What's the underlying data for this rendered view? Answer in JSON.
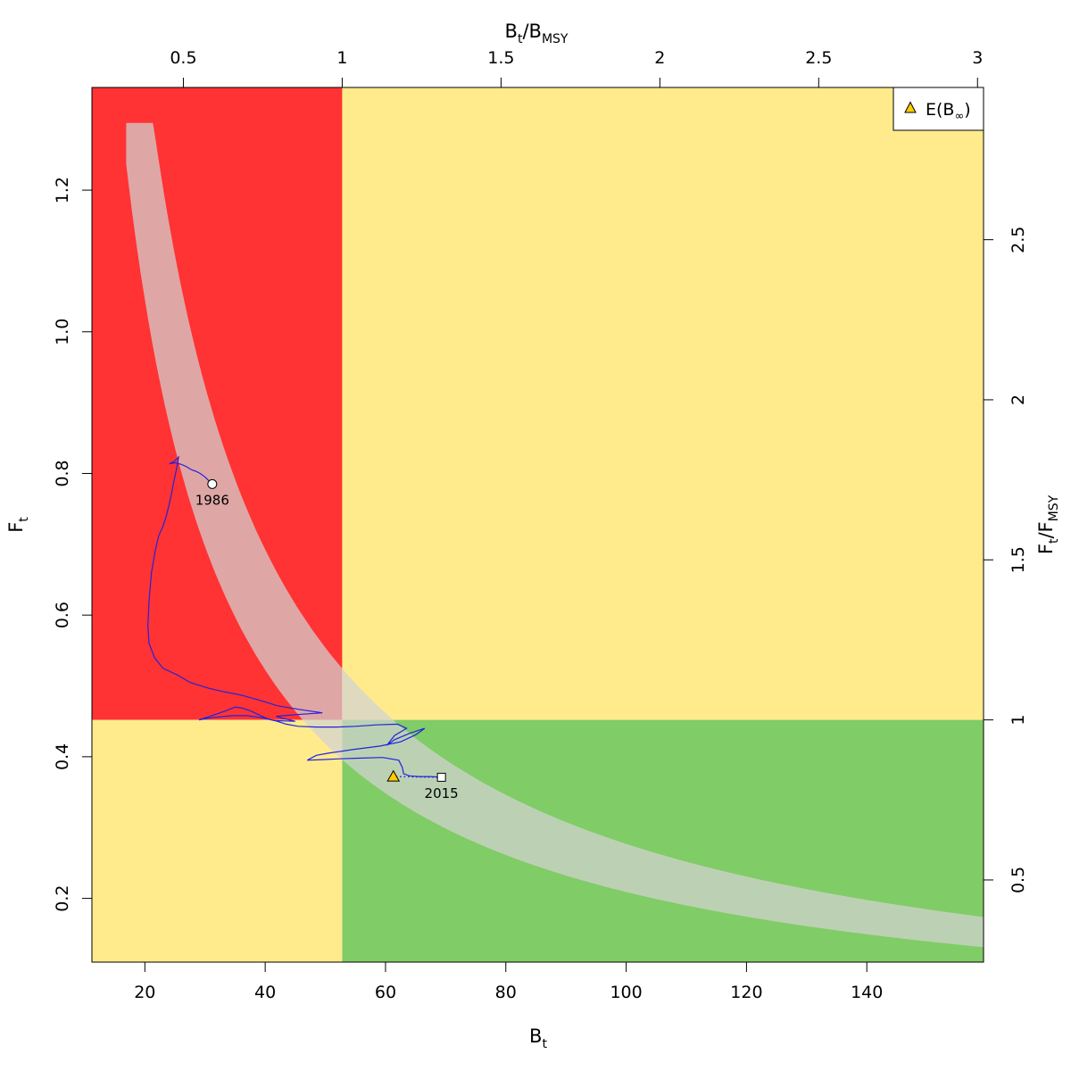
{
  "chart_data": {
    "type": "scatter",
    "title": "",
    "x_axis": {
      "label_main": "B",
      "label_sub": "t",
      "range": [
        11.2,
        159.4
      ],
      "ticks": [
        "20",
        "40",
        "60",
        "80",
        "100",
        "120",
        "140"
      ]
    },
    "y_axis": {
      "label_main": "F",
      "label_sub": "t",
      "range": [
        0.11,
        1.345
      ],
      "ticks": [
        "0.2",
        "0.4",
        "0.6",
        "0.8",
        "1.0",
        "1.2"
      ]
    },
    "top_axis": {
      "label_main_1": "B",
      "label_sub_1": "t",
      "label_sep": "/",
      "label_main_2": "B",
      "label_sub_2": "MSY",
      "ticks": [
        "0.5",
        "1",
        "1.5",
        "2",
        "2.5",
        "3"
      ]
    },
    "right_axis": {
      "label_main_1": "F",
      "label_sub_1": "t",
      "label_sep": "/",
      "label_main_2": "F",
      "label_sub_2": "MSY",
      "ticks": [
        "0.5",
        "1",
        "1.5",
        "2",
        "2.5"
      ]
    },
    "reference_points": {
      "Bmsy": 52.8,
      "Fmsy": 0.452
    },
    "zone_colors": {
      "red": "#ff3333",
      "yellow": "#ffeb8c",
      "green": "#80cc66",
      "band": "#d3d3d3"
    },
    "band": {
      "c_lower": 20.9,
      "c_upper": 27.7,
      "x_start": 16.9,
      "tip_y": 1.295,
      "x_end": 159.4
    },
    "trajectory": {
      "color": "#2222dd",
      "points": [
        [
          31.2,
          0.785
        ],
        [
          30.6,
          0.79
        ],
        [
          30.0,
          0.795
        ],
        [
          29.2,
          0.8
        ],
        [
          28.5,
          0.803
        ],
        [
          27.8,
          0.805
        ],
        [
          26.8,
          0.81
        ],
        [
          26.0,
          0.813
        ],
        [
          25.0,
          0.815
        ],
        [
          24.2,
          0.814
        ],
        [
          24.3,
          0.815
        ],
        [
          24.7,
          0.816
        ],
        [
          25.0,
          0.818
        ],
        [
          25.6,
          0.823
        ],
        [
          25.4,
          0.812
        ],
        [
          25.1,
          0.8
        ],
        [
          24.7,
          0.784
        ],
        [
          24.4,
          0.77
        ],
        [
          24.0,
          0.755
        ],
        [
          23.5,
          0.738
        ],
        [
          23.0,
          0.725
        ],
        [
          22.3,
          0.712
        ],
        [
          21.7,
          0.69
        ],
        [
          21.1,
          0.66
        ],
        [
          20.7,
          0.62
        ],
        [
          20.5,
          0.585
        ],
        [
          20.7,
          0.56
        ],
        [
          21.6,
          0.54
        ],
        [
          23.0,
          0.525
        ],
        [
          25.5,
          0.515
        ],
        [
          27.5,
          0.505
        ],
        [
          30.5,
          0.497
        ],
        [
          33.0,
          0.492
        ],
        [
          36.0,
          0.487
        ],
        [
          39.0,
          0.48
        ],
        [
          42.0,
          0.472
        ],
        [
          45.5,
          0.467
        ],
        [
          49.5,
          0.462
        ],
        [
          46.0,
          0.46
        ],
        [
          43.0,
          0.458
        ],
        [
          41.8,
          0.457
        ],
        [
          43.0,
          0.454
        ],
        [
          45.0,
          0.45
        ],
        [
          41.5,
          0.451
        ],
        [
          39.5,
          0.455
        ],
        [
          37.0,
          0.458
        ],
        [
          34.5,
          0.458
        ],
        [
          31.0,
          0.455
        ],
        [
          29.0,
          0.452
        ],
        [
          31.5,
          0.459
        ],
        [
          33.5,
          0.465
        ],
        [
          35.0,
          0.47
        ],
        [
          36.0,
          0.469
        ],
        [
          37.5,
          0.465
        ],
        [
          39.0,
          0.459
        ],
        [
          40.0,
          0.455
        ],
        [
          41.0,
          0.452
        ],
        [
          42.0,
          0.45
        ],
        [
          43.5,
          0.446
        ],
        [
          45.5,
          0.443
        ],
        [
          48.5,
          0.442
        ],
        [
          52.0,
          0.442
        ],
        [
          55.0,
          0.443
        ],
        [
          58.5,
          0.445
        ],
        [
          62.0,
          0.446
        ],
        [
          63.5,
          0.44
        ],
        [
          61.5,
          0.43
        ],
        [
          60.2,
          0.416
        ],
        [
          61.5,
          0.424
        ],
        [
          64.0,
          0.433
        ],
        [
          66.5,
          0.44
        ],
        [
          65.0,
          0.431
        ],
        [
          62.5,
          0.421
        ],
        [
          59.0,
          0.415
        ],
        [
          54.5,
          0.41
        ],
        [
          50.5,
          0.405
        ],
        [
          48.5,
          0.402
        ],
        [
          47.0,
          0.395
        ],
        [
          49.5,
          0.396
        ],
        [
          52.0,
          0.397
        ],
        [
          55.5,
          0.398
        ],
        [
          59.5,
          0.399
        ],
        [
          62.2,
          0.395
        ],
        [
          62.8,
          0.385
        ],
        [
          63.0,
          0.376
        ],
        [
          64.0,
          0.373
        ],
        [
          65.5,
          0.372
        ],
        [
          67.5,
          0.372
        ],
        [
          69.3,
          0.371
        ]
      ]
    },
    "start": {
      "x": 31.2,
      "y": 0.785,
      "label": "1986"
    },
    "end": {
      "x": 69.3,
      "y": 0.371,
      "label": "2015"
    },
    "equilibrium": {
      "x": 61.3,
      "y": 0.372,
      "color": "#ffcc00"
    },
    "legend": {
      "position": "top-right",
      "label_main": "E(B",
      "label_sub": "∞",
      "label_close": ")"
    }
  }
}
